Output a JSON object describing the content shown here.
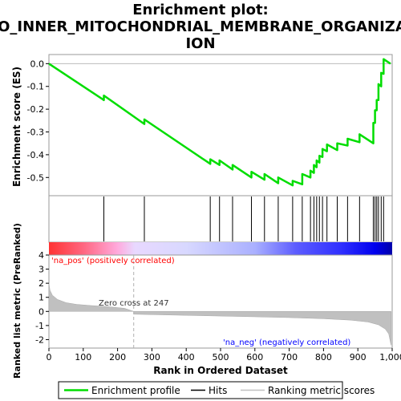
{
  "chart_data": {
    "type": "line",
    "title_lines": [
      "Enrichment plot:",
      "GO_INNER_MITOCHONDRIAL_MEMBRANE_ORGANIZAT",
      "ION"
    ],
    "xlabel": "Rank in Ordered Dataset",
    "ylabel_top": "Enrichment score (ES)",
    "ylabel_bottom": "Ranked list metric (PreRanked)",
    "xlim": [
      0,
      1000
    ],
    "x_ticks": [
      0,
      100,
      200,
      300,
      400,
      500,
      600,
      700,
      800,
      900,
      1000
    ],
    "x_tick_labels": [
      "0",
      "100",
      "200",
      "300",
      "400",
      "500",
      "600",
      "700",
      "800",
      "900",
      "1,000"
    ],
    "es_ylim": [
      -0.58,
      0.04
    ],
    "es_ticks": [
      0.0,
      -0.1,
      -0.2,
      -0.3,
      -0.4,
      -0.5
    ],
    "es_tick_labels": [
      "0.0",
      "-0.1",
      "-0.2",
      "-0.3",
      "-0.4",
      "-0.5"
    ],
    "metric_ylim": [
      -2.6,
      4.0
    ],
    "metric_ticks": [
      4,
      3,
      2,
      1,
      0,
      -1,
      -2
    ],
    "metric_tick_labels": [
      "4",
      "3",
      "2",
      "1",
      "0",
      "-1",
      "-2"
    ],
    "hits": [
      160,
      278,
      470,
      497,
      535,
      590,
      628,
      668,
      710,
      738,
      762,
      772,
      780,
      788,
      797,
      810,
      840,
      870,
      905,
      945,
      950,
      955,
      960,
      968,
      975
    ],
    "es_curve": [
      [
        0,
        0.0
      ],
      [
        160,
        -0.16
      ],
      [
        160,
        -0.14
      ],
      [
        278,
        -0.265
      ],
      [
        278,
        -0.245
      ],
      [
        470,
        -0.44
      ],
      [
        470,
        -0.42
      ],
      [
        497,
        -0.445
      ],
      [
        497,
        -0.425
      ],
      [
        535,
        -0.465
      ],
      [
        535,
        -0.445
      ],
      [
        590,
        -0.5
      ],
      [
        590,
        -0.475
      ],
      [
        628,
        -0.51
      ],
      [
        628,
        -0.485
      ],
      [
        668,
        -0.525
      ],
      [
        668,
        -0.5
      ],
      [
        710,
        -0.535
      ],
      [
        710,
        -0.515
      ],
      [
        738,
        -0.53
      ],
      [
        738,
        -0.485
      ],
      [
        762,
        -0.5
      ],
      [
        762,
        -0.47
      ],
      [
        772,
        -0.48
      ],
      [
        772,
        -0.445
      ],
      [
        780,
        -0.455
      ],
      [
        780,
        -0.425
      ],
      [
        788,
        -0.435
      ],
      [
        788,
        -0.405
      ],
      [
        797,
        -0.41
      ],
      [
        797,
        -0.375
      ],
      [
        810,
        -0.385
      ],
      [
        810,
        -0.355
      ],
      [
        840,
        -0.38
      ],
      [
        840,
        -0.35
      ],
      [
        870,
        -0.36
      ],
      [
        870,
        -0.33
      ],
      [
        905,
        -0.345
      ],
      [
        905,
        -0.31
      ],
      [
        945,
        -0.35
      ],
      [
        945,
        -0.26
      ],
      [
        950,
        -0.26
      ],
      [
        950,
        -0.205
      ],
      [
        955,
        -0.205
      ],
      [
        955,
        -0.16
      ],
      [
        960,
        -0.16
      ],
      [
        960,
        -0.09
      ],
      [
        968,
        -0.1
      ],
      [
        968,
        -0.04
      ],
      [
        975,
        -0.045
      ],
      [
        975,
        0.02
      ],
      [
        995,
        0.0
      ]
    ],
    "zero_cross_rank": 247,
    "zero_cross_label": "Zero cross at 247",
    "pos_label": "'na_pos' (positively correlated)",
    "neg_label": "'na_neg' (negatively correlated)",
    "metric_profile": [
      [
        0,
        2.0
      ],
      [
        3,
        1.5
      ],
      [
        10,
        1.15
      ],
      [
        25,
        0.85
      ],
      [
        50,
        0.62
      ],
      [
        80,
        0.5
      ],
      [
        120,
        0.42
      ],
      [
        170,
        0.34
      ],
      [
        220,
        0.22
      ],
      [
        247,
        0.0
      ],
      [
        247,
        -0.2
      ],
      [
        300,
        -0.23
      ],
      [
        400,
        -0.28
      ],
      [
        500,
        -0.33
      ],
      [
        600,
        -0.38
      ],
      [
        700,
        -0.44
      ],
      [
        800,
        -0.52
      ],
      [
        880,
        -0.62
      ],
      [
        930,
        -0.75
      ],
      [
        960,
        -0.95
      ],
      [
        980,
        -1.25
      ],
      [
        990,
        -1.6
      ],
      [
        995,
        -2.2
      ],
      [
        997,
        -2.4
      ]
    ],
    "colors": {
      "es_line": "#00dd00",
      "hits": "#000000",
      "metric_fill": "#c0c0c0",
      "pos_text": "#ff0000",
      "neg_text": "#0000ff",
      "zero_line": "#b0b0b0"
    },
    "legend": [
      {
        "label": "Enrichment profile",
        "kind": "line",
        "color": "#00dd00"
      },
      {
        "label": "Hits",
        "kind": "line",
        "color": "#000000"
      },
      {
        "label": "Ranking metric scores",
        "kind": "line",
        "color": "#c0c0c0"
      }
    ]
  }
}
